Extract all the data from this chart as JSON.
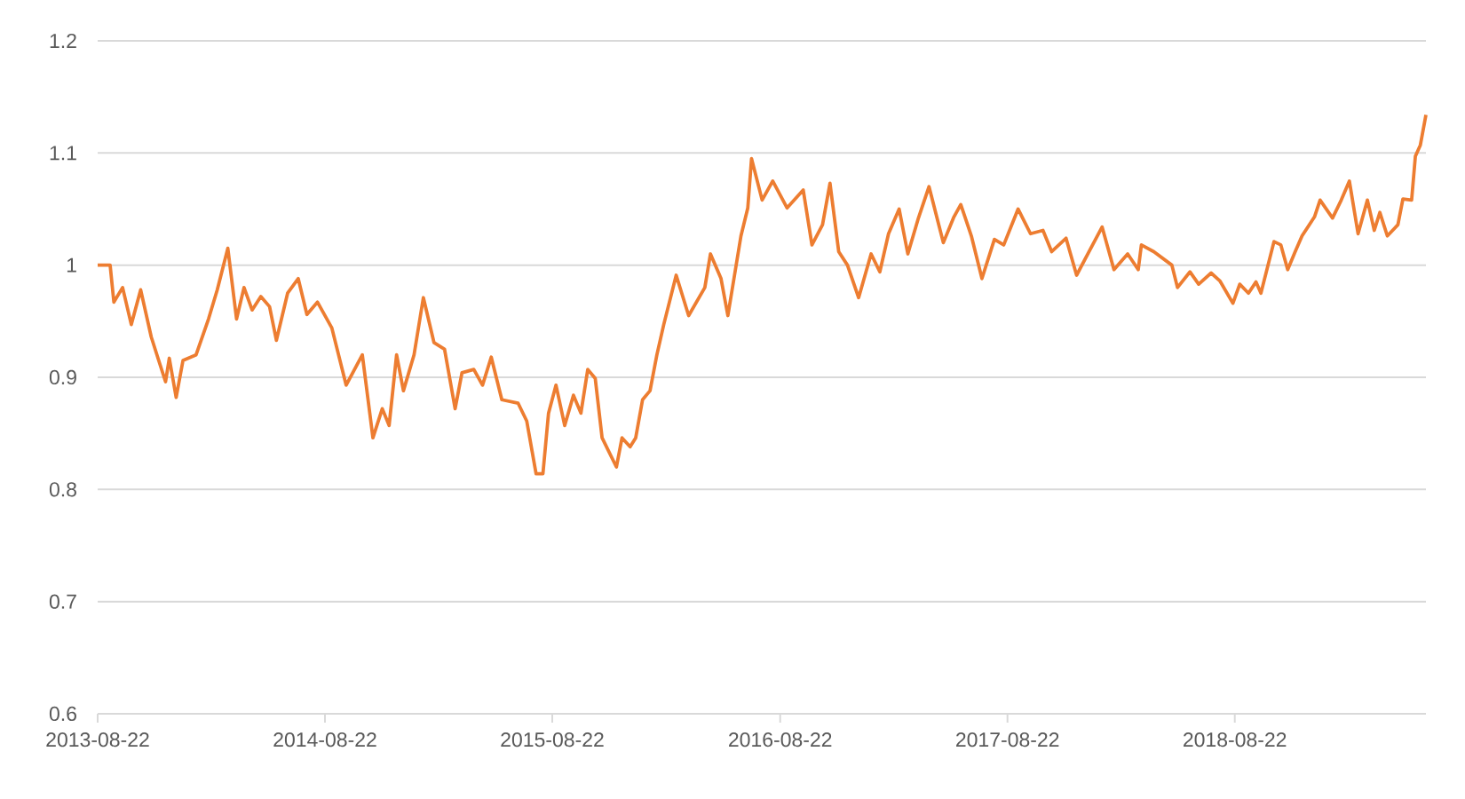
{
  "chart_data": {
    "type": "line",
    "x": [
      "2013-08-22",
      "2013-09-11",
      "2013-09-17",
      "2013-10-01",
      "2013-10-15",
      "2013-10-30",
      "2013-11-16",
      "2013-11-28",
      "2013-12-09",
      "2013-12-15",
      "2013-12-26",
      "2014-01-06",
      "2014-01-27",
      "2014-02-16",
      "2014-03-02",
      "2014-03-19",
      "2014-04-02",
      "2014-04-14",
      "2014-04-27",
      "2014-05-11",
      "2014-05-25",
      "2014-06-05",
      "2014-06-23",
      "2014-07-10",
      "2014-07-24",
      "2014-08-10",
      "2014-09-02",
      "2014-09-25",
      "2014-10-21",
      "2014-11-07",
      "2014-11-22",
      "2014-12-03",
      "2014-12-15",
      "2014-12-26",
      "2015-01-12",
      "2015-01-27",
      "2015-02-13",
      "2015-03-02",
      "2015-03-19",
      "2015-03-30",
      "2015-04-18",
      "2015-05-02",
      "2015-05-16",
      "2015-06-02",
      "2015-06-28",
      "2015-07-12",
      "2015-07-27",
      "2015-08-07",
      "2015-08-16",
      "2015-08-28",
      "2015-09-11",
      "2015-09-25",
      "2015-10-07",
      "2015-10-18",
      "2015-10-30",
      "2015-11-10",
      "2015-12-03",
      "2015-12-12",
      "2015-12-25",
      "2016-01-03",
      "2016-01-14",
      "2016-01-26",
      "2016-02-06",
      "2016-02-17",
      "2016-03-08",
      "2016-03-28",
      "2016-04-23",
      "2016-05-02",
      "2016-05-19",
      "2016-05-30",
      "2016-06-20",
      "2016-07-01",
      "2016-07-07",
      "2016-07-24",
      "2016-08-10",
      "2016-09-02",
      "2016-09-28",
      "2016-10-12",
      "2016-10-29",
      "2016-11-10",
      "2016-11-24",
      "2016-12-08",
      "2016-12-26",
      "2017-01-15",
      "2017-01-29",
      "2017-02-12",
      "2017-03-01",
      "2017-03-15",
      "2017-04-01",
      "2017-04-18",
      "2017-05-11",
      "2017-05-28",
      "2017-06-08",
      "2017-06-25",
      "2017-07-12",
      "2017-08-01",
      "2017-08-16",
      "2017-09-08",
      "2017-09-28",
      "2017-10-18",
      "2017-11-01",
      "2017-11-24",
      "2017-12-11",
      "2017-12-31",
      "2018-01-21",
      "2018-02-09",
      "2018-03-03",
      "2018-03-20",
      "2018-03-25",
      "2018-04-14",
      "2018-05-13",
      "2018-05-22",
      "2018-06-11",
      "2018-06-25",
      "2018-07-15",
      "2018-07-29",
      "2018-08-19",
      "2018-08-30",
      "2018-09-13",
      "2018-09-25",
      "2018-10-03",
      "2018-10-24",
      "2018-11-04",
      "2018-11-15",
      "2018-11-27",
      "2018-12-08",
      "2018-12-28",
      "2019-01-06",
      "2019-01-26",
      "2019-02-09",
      "2019-02-22",
      "2019-03-08",
      "2019-03-23",
      "2019-04-03",
      "2019-04-12",
      "2019-04-24",
      "2019-05-11",
      "2019-05-19",
      "2019-06-02",
      "2019-06-08",
      "2019-06-16",
      "2019-06-25"
    ],
    "series": [
      {
        "color": "#ed7d31",
        "values": [
          1.0,
          1.0,
          0.967,
          0.98,
          0.947,
          0.978,
          0.936,
          0.915,
          0.896,
          0.917,
          0.882,
          0.915,
          0.92,
          0.952,
          0.978,
          1.015,
          0.952,
          0.98,
          0.96,
          0.972,
          0.963,
          0.933,
          0.975,
          0.988,
          0.956,
          0.967,
          0.944,
          0.893,
          0.92,
          0.846,
          0.872,
          0.857,
          0.92,
          0.888,
          0.92,
          0.971,
          0.931,
          0.925,
          0.872,
          0.904,
          0.907,
          0.893,
          0.918,
          0.88,
          0.877,
          0.861,
          0.814,
          0.814,
          0.868,
          0.893,
          0.857,
          0.884,
          0.868,
          0.907,
          0.899,
          0.846,
          0.82,
          0.846,
          0.838,
          0.846,
          0.88,
          0.888,
          0.92,
          0.947,
          0.991,
          0.955,
          0.98,
          1.01,
          0.988,
          0.955,
          1.026,
          1.051,
          1.095,
          1.058,
          1.075,
          1.051,
          1.067,
          1.018,
          1.036,
          1.073,
          1.012,
          1.0,
          0.971,
          1.01,
          0.994,
          1.028,
          1.05,
          1.01,
          1.042,
          1.07,
          1.02,
          1.043,
          1.054,
          1.026,
          0.988,
          1.023,
          1.018,
          1.05,
          1.028,
          1.031,
          1.012,
          1.024,
          0.991,
          1.012,
          1.034,
          0.996,
          1.01,
          0.996,
          1.018,
          1.012,
          1.0,
          0.98,
          0.994,
          0.983,
          0.993,
          0.986,
          0.966,
          0.983,
          0.975,
          0.985,
          0.975,
          1.021,
          1.018,
          0.996,
          1.012,
          1.026,
          1.043,
          1.058,
          1.042,
          1.058,
          1.075,
          1.028,
          1.058,
          1.031,
          1.047,
          1.026,
          1.036,
          1.059,
          1.058,
          1.097,
          1.107,
          1.134
        ]
      }
    ],
    "xlim": [
      "2013-08-22",
      "2019-06-25"
    ],
    "xticks": [
      "2013-08-22",
      "2014-08-22",
      "2015-08-22",
      "2016-08-22",
      "2017-08-22",
      "2018-08-22"
    ],
    "ylim": [
      0.6,
      1.2
    ],
    "yticks": [
      0.6,
      0.7,
      0.8,
      0.9,
      1,
      1.1,
      1.2
    ],
    "grid": "y",
    "marker": "none",
    "line_style": "solid"
  }
}
